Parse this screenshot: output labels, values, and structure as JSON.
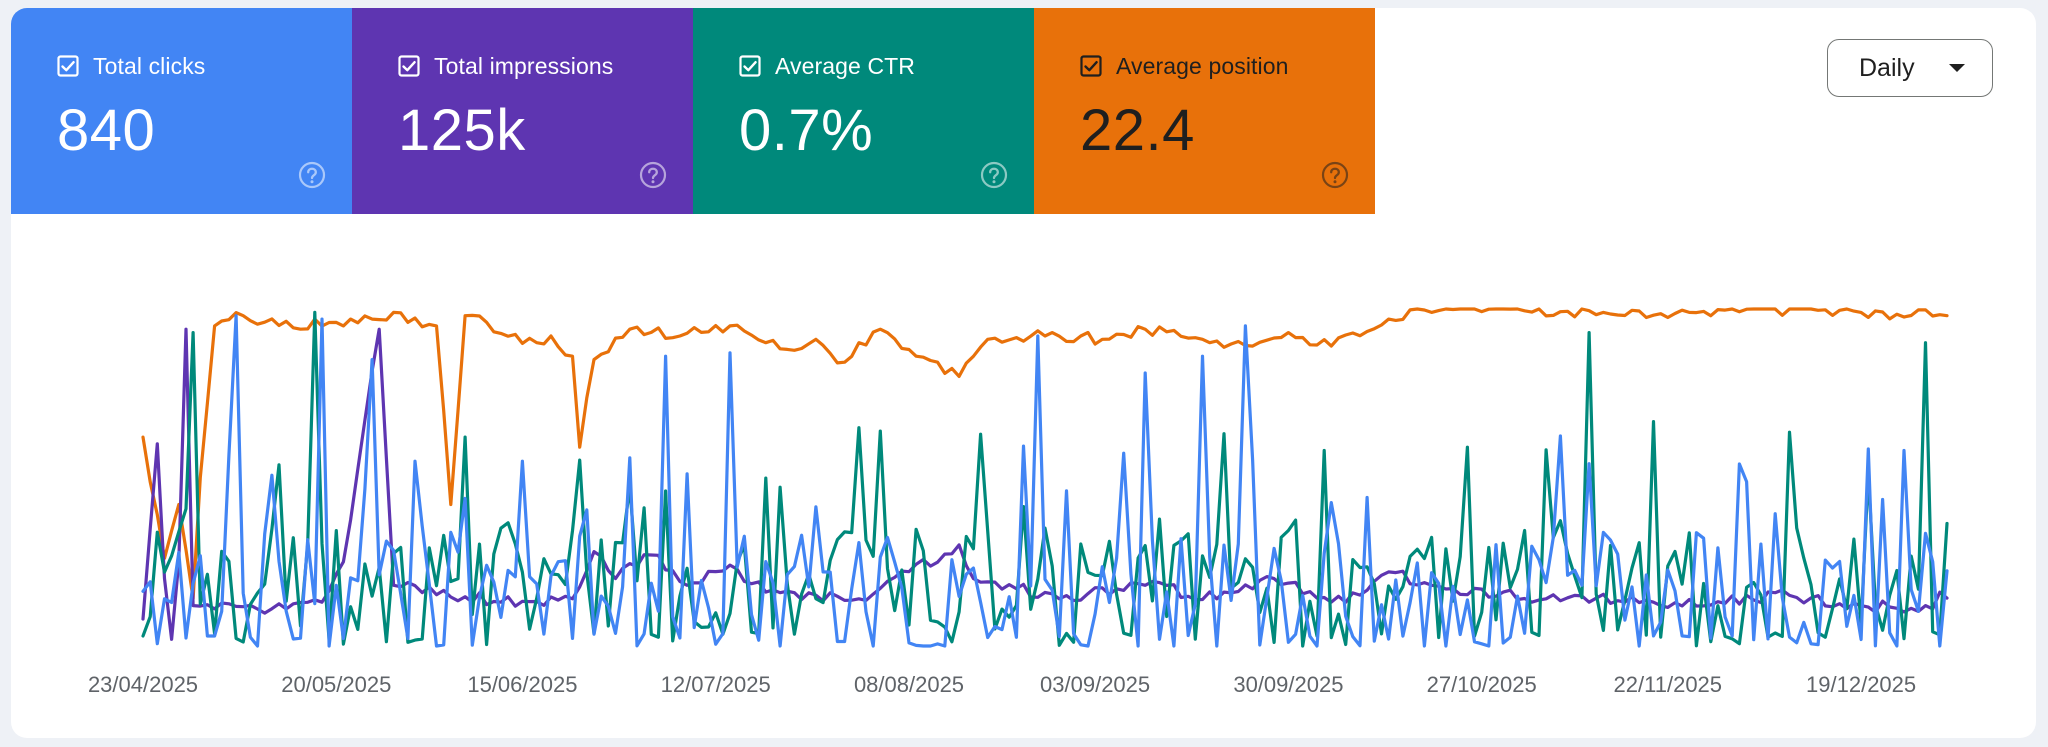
{
  "metrics": [
    {
      "label": "Total clicks",
      "value": "840",
      "color": "#4285f4",
      "text_color": "#ffffff",
      "checked": true
    },
    {
      "label": "Total impressions",
      "value": "125k",
      "color": "#5e35b1",
      "text_color": "#ffffff",
      "checked": true
    },
    {
      "label": "Average CTR",
      "value": "0.7%",
      "color": "#00897b",
      "text_color": "#ffffff",
      "checked": true
    },
    {
      "label": "Average position",
      "value": "22.4",
      "color": "#e8710a",
      "text_color": "#1f1f1f",
      "checked": true
    }
  ],
  "period_selector": {
    "label": "Daily"
  },
  "chart_data": {
    "type": "line",
    "title": "",
    "xlabel": "",
    "ylabel": "",
    "grid": false,
    "legend": "metric tiles above chart",
    "x_start": "2025-04-23",
    "x_end": "2025-12-31",
    "x_tick_labels": [
      "23/04/2025",
      "20/05/2025",
      "15/06/2025",
      "12/07/2025",
      "08/08/2025",
      "03/09/2025",
      "30/09/2025",
      "27/10/2025",
      "22/11/2025",
      "19/12/2025"
    ],
    "series": [
      {
        "name": "Average position",
        "color": "#e8710a",
        "note": "inverted normalized scale, 1 = top of plot",
        "anchors": [
          [
            0,
            0.62
          ],
          [
            3,
            0.26
          ],
          [
            5,
            0.42
          ],
          [
            7,
            0.14
          ],
          [
            8,
            0.5
          ],
          [
            10,
            0.95
          ],
          [
            14,
            0.98
          ],
          [
            22,
            0.94
          ],
          [
            24,
            0.97
          ],
          [
            26,
            0.96
          ],
          [
            29,
            0.97
          ],
          [
            32,
            0.97
          ],
          [
            35,
            0.99
          ],
          [
            41,
            0.95
          ],
          [
            43,
            0.42
          ],
          [
            45,
            0.98
          ],
          [
            55,
            0.9
          ],
          [
            57,
            0.92
          ],
          [
            60,
            0.86
          ],
          [
            61,
            0.59
          ],
          [
            63,
            0.85
          ],
          [
            68,
            0.94
          ],
          [
            75,
            0.92
          ],
          [
            82,
            0.95
          ],
          [
            87,
            0.9
          ],
          [
            90,
            0.88
          ],
          [
            94,
            0.91
          ],
          [
            97,
            0.84
          ],
          [
            103,
            0.94
          ],
          [
            108,
            0.86
          ],
          [
            114,
            0.8
          ],
          [
            118,
            0.91
          ],
          [
            126,
            0.92
          ],
          [
            134,
            0.91
          ],
          [
            140,
            0.94
          ],
          [
            148,
            0.91
          ],
          [
            155,
            0.89
          ],
          [
            160,
            0.93
          ],
          [
            166,
            0.89
          ],
          [
            174,
            0.97
          ],
          [
            180,
            0.99
          ],
          [
            192,
            1.0
          ],
          [
            204,
            0.99
          ],
          [
            216,
            0.99
          ],
          [
            228,
            1.0
          ],
          [
            240,
            0.99
          ],
          [
            252,
            0.98
          ]
        ],
        "jitter": 0.018
      },
      {
        "name": "Total impressions",
        "color": "#5e35b1",
        "note": "normalized 0-1",
        "anchors": [
          [
            0,
            0.08
          ],
          [
            2,
            0.6
          ],
          [
            3,
            0.2
          ],
          [
            4,
            0.02
          ],
          [
            5,
            0.25
          ],
          [
            6,
            0.94
          ],
          [
            7,
            0.12
          ],
          [
            10,
            0.11
          ],
          [
            20,
            0.11
          ],
          [
            25,
            0.13
          ],
          [
            28,
            0.25
          ],
          [
            33,
            0.94
          ],
          [
            35,
            0.18
          ],
          [
            50,
            0.13
          ],
          [
            60,
            0.14
          ],
          [
            63,
            0.28
          ],
          [
            66,
            0.2
          ],
          [
            71,
            0.27
          ],
          [
            76,
            0.18
          ],
          [
            82,
            0.24
          ],
          [
            87,
            0.16
          ],
          [
            100,
            0.14
          ],
          [
            114,
            0.3
          ],
          [
            116,
            0.2
          ],
          [
            128,
            0.14
          ],
          [
            140,
            0.18
          ],
          [
            150,
            0.14
          ],
          [
            158,
            0.2
          ],
          [
            168,
            0.13
          ],
          [
            174,
            0.22
          ],
          [
            180,
            0.18
          ],
          [
            196,
            0.14
          ],
          [
            200,
            0.15
          ],
          [
            212,
            0.12
          ],
          [
            230,
            0.15
          ],
          [
            240,
            0.12
          ],
          [
            250,
            0.11
          ],
          [
            251,
            0.16
          ]
        ],
        "jitter": 0.018
      },
      {
        "name": "Average CTR",
        "color": "#00897b",
        "note": "normalized 0-1, spiky daily series",
        "base": 0.17,
        "amplitude": 0.33,
        "peaks": [
          [
            7,
            0.93
          ],
          [
            24,
            0.99
          ],
          [
            45,
            0.62
          ],
          [
            73,
            0.46
          ],
          [
            151,
            0.63
          ],
          [
            165,
            0.58
          ],
          [
            185,
            0.59
          ],
          [
            202,
            0.93
          ],
          [
            249,
            0.9
          ]
        ],
        "seed": 37
      },
      {
        "name": "Total clicks",
        "color": "#4285f4",
        "note": "normalized 0-1, spiky daily series",
        "base": 0.14,
        "amplitude": 0.36,
        "peaks": [
          [
            13,
            0.98
          ],
          [
            25,
            0.97
          ],
          [
            32,
            0.85
          ],
          [
            73,
            0.86
          ],
          [
            82,
            0.87
          ],
          [
            125,
            0.92
          ],
          [
            140,
            0.81
          ],
          [
            148,
            0.86
          ],
          [
            154,
            0.95
          ],
          [
            223,
            0.54
          ],
          [
            246,
            0.58
          ]
        ],
        "seed": 11
      }
    ]
  }
}
